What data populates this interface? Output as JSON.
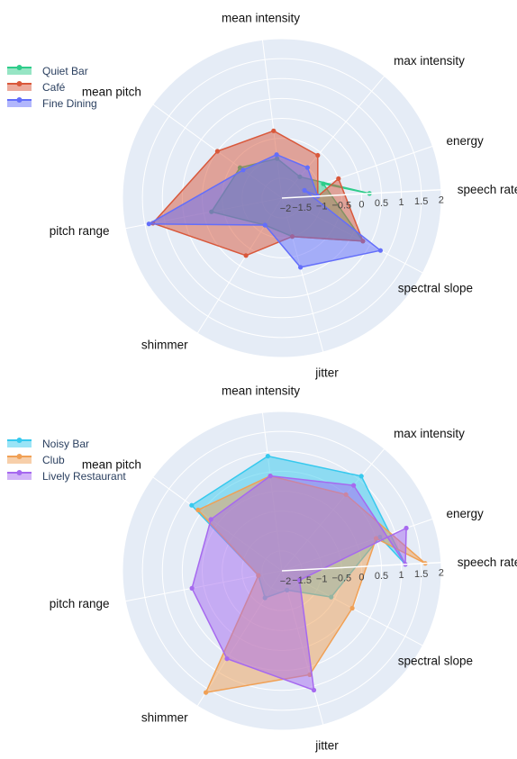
{
  "chart_data": [
    {
      "type": "radar",
      "axes": [
        "speech rate",
        "max intensity",
        "mean intensity",
        "mean pitch",
        "pitch range",
        "shimmer",
        "jitter",
        "spectral slope",
        "energy"
      ],
      "radial_range": [
        -2,
        2
      ],
      "radial_ticks": [
        "−2",
        "−1.5",
        "−1",
        "−0.5",
        "0",
        "0.5",
        "1",
        "1.5",
        "2"
      ],
      "legend_position": "top-left",
      "series": [
        {
          "name": "Quiet Bar",
          "color": "#2ecc8a",
          "values": [
            0.2,
            -1.3,
            -1.0,
            -0.7,
            -0.2,
            -1.2,
            -1.0,
            0.3,
            -0.9
          ]
        },
        {
          "name": "Café",
          "color": "#d9583b",
          "values": [
            -1.1,
            -0.6,
            -0.3,
            0.0,
            1.3,
            -0.3,
            -1.0,
            0.3,
            -0.5
          ]
        },
        {
          "name": "Fine Dining",
          "color": "#636efa",
          "values": [
            -1.1,
            -1.0,
            -0.9,
            -0.8,
            1.4,
            -1.2,
            -0.2,
            0.8,
            -1.4
          ]
        }
      ]
    },
    {
      "type": "radar",
      "axes": [
        "speech rate",
        "max intensity",
        "mean intensity",
        "mean pitch",
        "pitch range",
        "shimmer",
        "jitter",
        "spectral slope",
        "energy"
      ],
      "radial_range": [
        -2,
        2
      ],
      "radial_ticks": [
        "−2",
        "−1.5",
        "−1",
        "−0.5",
        "0",
        "0.5",
        "1",
        "1.5",
        "2"
      ],
      "legend_position": "top-left",
      "series": [
        {
          "name": "Noisy Bar",
          "color": "#36c9ee",
          "values": [
            1.1,
            1.1,
            0.9,
            0.8,
            -1.4,
            -1.2,
            -1.5,
            -0.6,
            0.6
          ]
        },
        {
          "name": "Club",
          "color": "#f0a055",
          "values": [
            1.6,
            0.5,
            0.4,
            0.6,
            -1.4,
            1.6,
            0.7,
            0.0,
            0.5
          ]
        },
        {
          "name": "Lively Restaurant",
          "color": "#a669ef",
          "values": [
            1.1,
            0.8,
            0.4,
            0.2,
            0.3,
            0.6,
            1.1,
            -1.5,
            1.3
          ]
        }
      ]
    }
  ]
}
